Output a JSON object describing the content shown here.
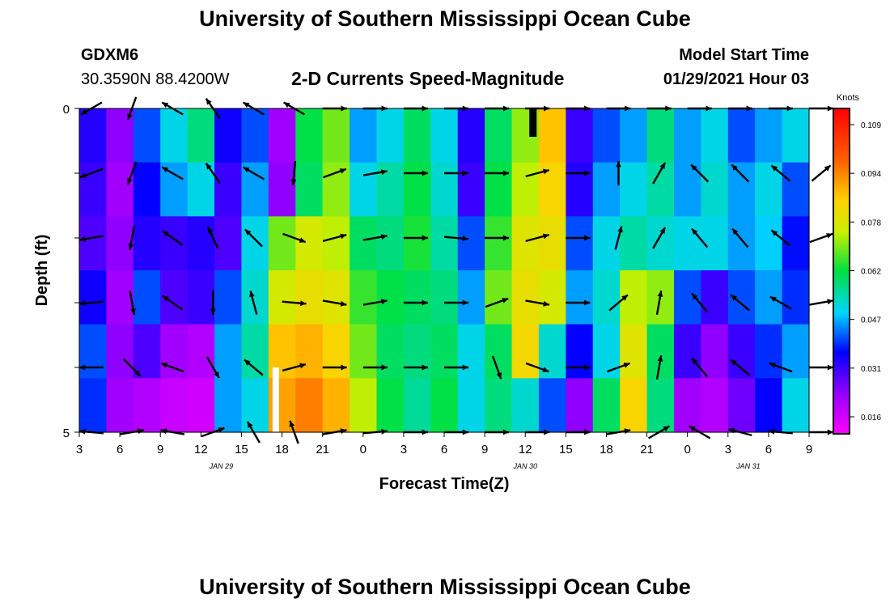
{
  "header": {
    "title": "University of Southern Mississippi Ocean Cube",
    "station_id": "GDXM6",
    "station_coords": "30.3590N 88.4200W",
    "chart_title": "2-D Currents Speed-Magnitude",
    "model_label": "Model Start Time",
    "model_time": "01/29/2021 Hour 03"
  },
  "footer": {
    "title": "University of Southern Mississippi Ocean Cube"
  },
  "chart_data": {
    "type": "heatmap",
    "title": "2-D Currents Speed-Magnitude",
    "xlabel": "Forecast Time(Z)",
    "ylabel": "Depth (ft)",
    "x_tick_labels": [
      "3",
      "6",
      "9",
      "12",
      "15",
      "18",
      "21",
      "0",
      "3",
      "6",
      "9",
      "12",
      "15",
      "18",
      "21",
      "0",
      "3",
      "6",
      "9"
    ],
    "x_hours_from_start": [
      0,
      3,
      6,
      9,
      12,
      15,
      18,
      21,
      24,
      27,
      30,
      33,
      36,
      39,
      42,
      45,
      48,
      51,
      54
    ],
    "date_labels": [
      {
        "label": "JAN 29",
        "at_hour": 10.5
      },
      {
        "label": "JAN 30",
        "at_hour": 33
      },
      {
        "label": "JAN 31",
        "at_hour": 49.5
      }
    ],
    "y_tick_labels": [
      "0",
      "5"
    ],
    "ylim": [
      0,
      5
    ],
    "colorbar": {
      "unit": "Knots",
      "ticks": [
        "0.109",
        "0.094",
        "0.078",
        "0.062",
        "0.047",
        "0.031",
        "0.016"
      ],
      "range": [
        0.008,
        0.117
      ]
    },
    "depth_levels": [
      0.5,
      1.5,
      2.5,
      3.5,
      4.5
    ],
    "speed_columns": [
      [
        0.032,
        0.022,
        0.04,
        0.05,
        0.058,
        0.034,
        0.04,
        0.02,
        0.062,
        0.07,
        0.045,
        0.05,
        0.06,
        0.05,
        0.032,
        0.06,
        0.072,
        0.088,
        0.03,
        0.04,
        0.045,
        0.058,
        0.045,
        0.05,
        0.04,
        0.045,
        0.05
      ],
      [
        0.03,
        0.02,
        0.035,
        0.045,
        0.05,
        0.03,
        0.045,
        0.022,
        0.06,
        0.072,
        0.05,
        0.055,
        0.062,
        0.052,
        0.03,
        0.062,
        0.075,
        0.085,
        0.032,
        0.045,
        0.05,
        0.055,
        0.045,
        0.052,
        0.045,
        0.05,
        0.04
      ],
      [
        0.028,
        0.022,
        0.032,
        0.03,
        0.032,
        0.028,
        0.05,
        0.07,
        0.078,
        0.075,
        0.06,
        0.058,
        0.064,
        0.055,
        0.04,
        0.066,
        0.08,
        0.082,
        0.04,
        0.05,
        0.055,
        0.052,
        0.05,
        0.05,
        0.045,
        0.048,
        0.036
      ],
      [
        0.034,
        0.02,
        0.04,
        0.028,
        0.03,
        0.04,
        0.052,
        0.078,
        0.082,
        0.08,
        0.066,
        0.062,
        0.06,
        0.058,
        0.045,
        0.07,
        0.082,
        0.078,
        0.045,
        0.052,
        0.075,
        0.072,
        0.04,
        0.03,
        0.04,
        0.045,
        0.038
      ],
      [
        0.04,
        0.022,
        0.028,
        0.02,
        0.018,
        0.045,
        0.055,
        0.088,
        0.09,
        0.085,
        0.07,
        0.06,
        0.058,
        0.06,
        0.05,
        0.06,
        0.084,
        0.052,
        0.035,
        0.05,
        0.08,
        0.06,
        0.03,
        0.022,
        0.03,
        0.038,
        0.045
      ],
      [
        0.038,
        0.02,
        0.018,
        0.015,
        0.014,
        0.045,
        0.05,
        0.092,
        0.096,
        0.09,
        0.075,
        0.062,
        0.056,
        0.062,
        0.05,
        0.058,
        0.052,
        0.04,
        0.022,
        0.06,
        0.085,
        0.058,
        0.02,
        0.018,
        0.025,
        0.035,
        0.05
      ]
    ],
    "arrow_rows_hours": [
      0,
      3,
      6,
      9,
      12,
      15,
      18,
      21,
      24,
      27,
      30,
      33,
      36,
      39,
      42,
      45,
      48,
      51,
      54
    ],
    "arrow_angles_deg": [
      [
        150,
        110,
        -150,
        -125,
        -150,
        -150,
        0,
        0,
        0,
        0,
        0,
        0,
        0,
        0,
        0,
        0,
        0,
        0,
        0
      ],
      [
        160,
        110,
        -150,
        -125,
        -150,
        95,
        -20,
        -10,
        0,
        0,
        0,
        -15,
        0,
        -90,
        -60,
        -135,
        -135,
        -140,
        -40
      ],
      [
        170,
        100,
        -145,
        -115,
        -135,
        20,
        -15,
        -10,
        0,
        5,
        0,
        -15,
        0,
        -75,
        -60,
        -130,
        -130,
        -140,
        -20
      ],
      [
        175,
        80,
        -145,
        90,
        -105,
        5,
        10,
        -10,
        0,
        0,
        -20,
        10,
        0,
        -40,
        -80,
        -130,
        -140,
        -150,
        -10
      ],
      [
        180,
        45,
        -160,
        60,
        -140,
        -15,
        0,
        0,
        0,
        0,
        70,
        20,
        0,
        -20,
        -80,
        -130,
        -140,
        -160,
        0
      ],
      [
        -175,
        -10,
        -170,
        -20,
        -120,
        -110,
        -10,
        -5,
        0,
        0,
        0,
        0,
        0,
        -10,
        -30,
        -150,
        -165,
        -175,
        0
      ]
    ],
    "markers": [
      {
        "type": "white-bar",
        "at_hour": 14.3,
        "depth": 4.5
      },
      {
        "type": "black-bar",
        "at_hour": 33.3,
        "depth": 0.25
      }
    ]
  }
}
